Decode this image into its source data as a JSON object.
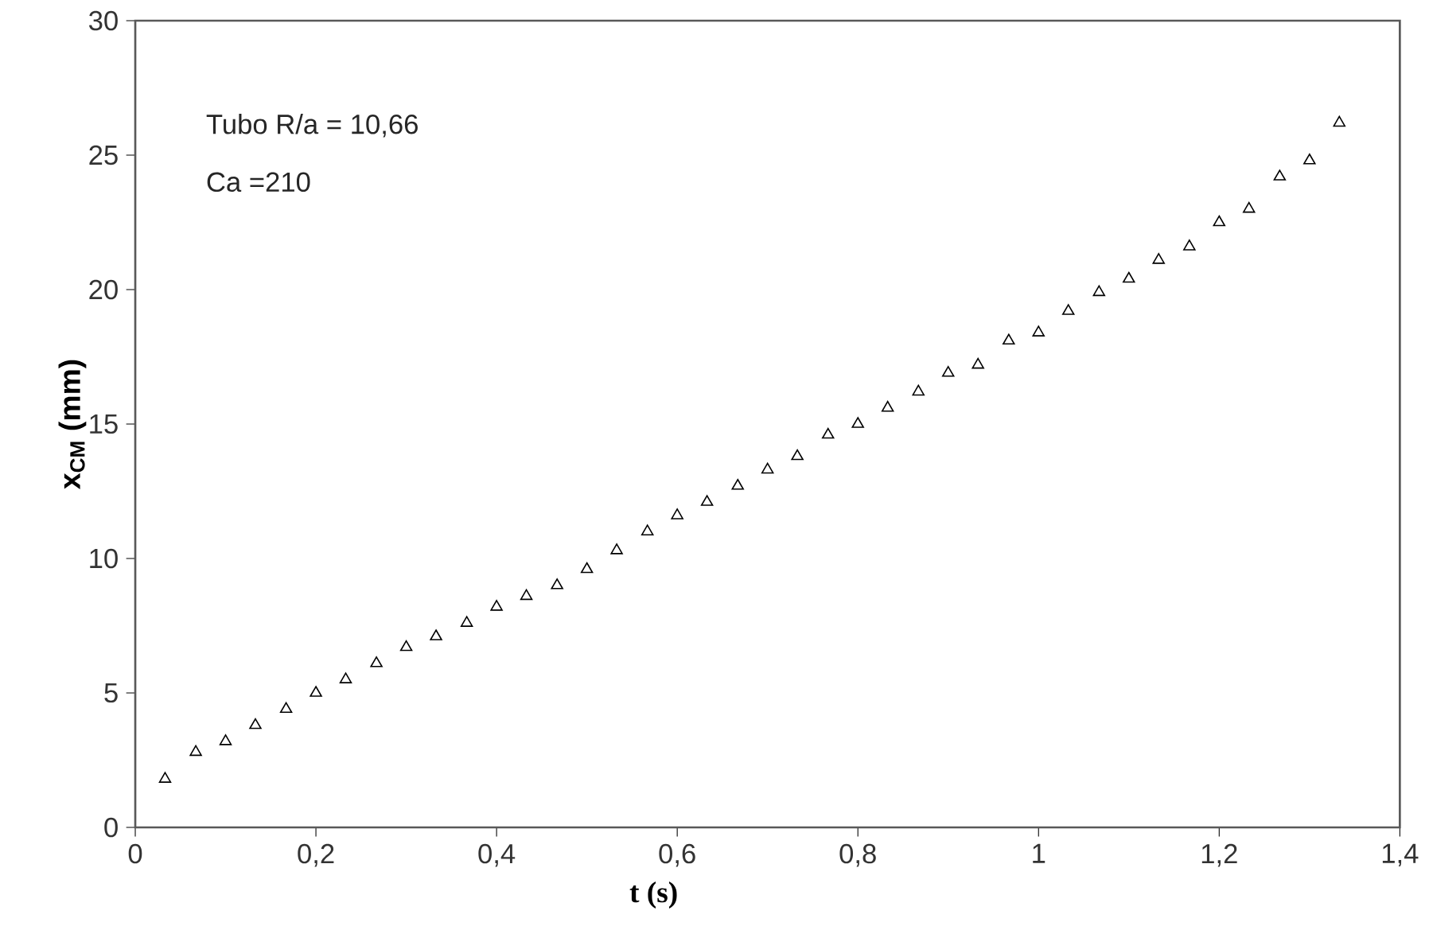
{
  "chart_data": {
    "type": "scatter",
    "xlabel": "t (s)",
    "ylabel": "x$_{CM}$ (mm)",
    "annotations": [
      "Tubo R/a = 10,66",
      "Ca =210"
    ],
    "xlim": [
      0,
      1.4
    ],
    "ylim": [
      0,
      30
    ],
    "xticks": [
      0,
      {
        "value": 0.2,
        "label": "0,2"
      },
      {
        "value": 0.4,
        "label": "0,4"
      },
      {
        "value": 0.6,
        "label": "0,6"
      },
      {
        "value": 0.8,
        "label": "0,8"
      },
      1,
      {
        "value": 1.2,
        "label": "1,2"
      },
      {
        "value": 1.4,
        "label": "1,4"
      }
    ],
    "yticks": [
      0,
      5,
      10,
      15,
      20,
      25,
      30
    ],
    "grid": false,
    "marker": "triangle",
    "series": [
      {
        "color": "#000000",
        "x": [
          0.033,
          0.067,
          0.1,
          0.133,
          0.167,
          0.2,
          0.233,
          0.267,
          0.3,
          0.333,
          0.367,
          0.4,
          0.433,
          0.467,
          0.5,
          0.533,
          0.567,
          0.6,
          0.633,
          0.667,
          0.7,
          0.733,
          0.767,
          0.8,
          0.833,
          0.867,
          0.9,
          0.933,
          0.967,
          1.0,
          1.033,
          1.067,
          1.1,
          1.133,
          1.167,
          1.2,
          1.233,
          1.267,
          1.3,
          1.333
        ],
        "values": [
          1.8,
          2.8,
          3.2,
          3.8,
          4.4,
          5.0,
          5.5,
          6.1,
          6.7,
          7.1,
          7.6,
          8.2,
          8.6,
          9.0,
          9.6,
          10.3,
          11.0,
          11.6,
          12.1,
          12.7,
          13.3,
          13.8,
          14.6,
          15.0,
          15.6,
          16.2,
          16.9,
          17.2,
          18.1,
          18.4,
          19.2,
          19.9,
          20.4,
          21.1,
          21.6,
          22.5,
          23.0,
          24.2,
          24.8,
          26.2
        ]
      }
    ]
  }
}
